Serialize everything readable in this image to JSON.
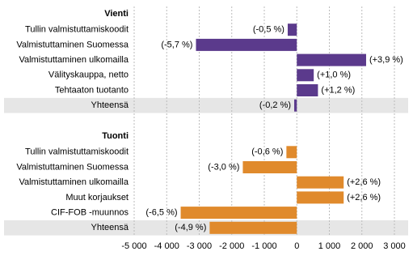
{
  "chart_data": {
    "type": "hbar-groups",
    "xlim": [
      -5000,
      3000
    ],
    "xticks": [
      {
        "value": -5000,
        "label": "-5 000"
      },
      {
        "value": -4000,
        "label": "-4 000"
      },
      {
        "value": -3000,
        "label": "-3 000"
      },
      {
        "value": -2000,
        "label": "-2 000"
      },
      {
        "value": -1000,
        "label": "-1 000"
      },
      0,
      {
        "value": 1000,
        "label": "1 000"
      },
      {
        "value": 2000,
        "label": "2 000"
      },
      {
        "value": 3000,
        "label": "3 000"
      }
    ],
    "grid": true,
    "groups": [
      {
        "name": "Vienti",
        "color": "#5b3a8c",
        "categories": [
          "Tullin valmistuttamiskoodit",
          "Valmistuttaminen Suomessa",
          "Valmistuttaminen ulkomailla",
          "Välityskauppa, netto",
          "Tehtaaton tuotanto",
          "Yhteensä"
        ],
        "values": [
          -280,
          -3100,
          2130,
          520,
          650,
          -80
        ],
        "labels": [
          "(-0,5 %)",
          "(-5,7 %)",
          "(+3,9 %)",
          "(+1,0 %)",
          "(+1,2 %)",
          "(-0,2 %)"
        ]
      },
      {
        "name": "Tuonti",
        "color": "#e08a2c",
        "categories": [
          "Tullin valmistuttamiskoodit",
          "Valmistuttaminen Suomessa",
          "Valmistuttaminen ulkomailla",
          "Muut korjaukset",
          "CIF-FOB -muunnos",
          "Yhteensä"
        ],
        "values": [
          -320,
          -1660,
          1440,
          1440,
          -3570,
          -2680
        ],
        "labels": [
          "(-0,6 %)",
          "(-3,0 %)",
          "(+2,6 %)",
          "(+2,6 %)",
          "(-6,5 %)",
          "(-4,9 %)"
        ]
      }
    ]
  }
}
